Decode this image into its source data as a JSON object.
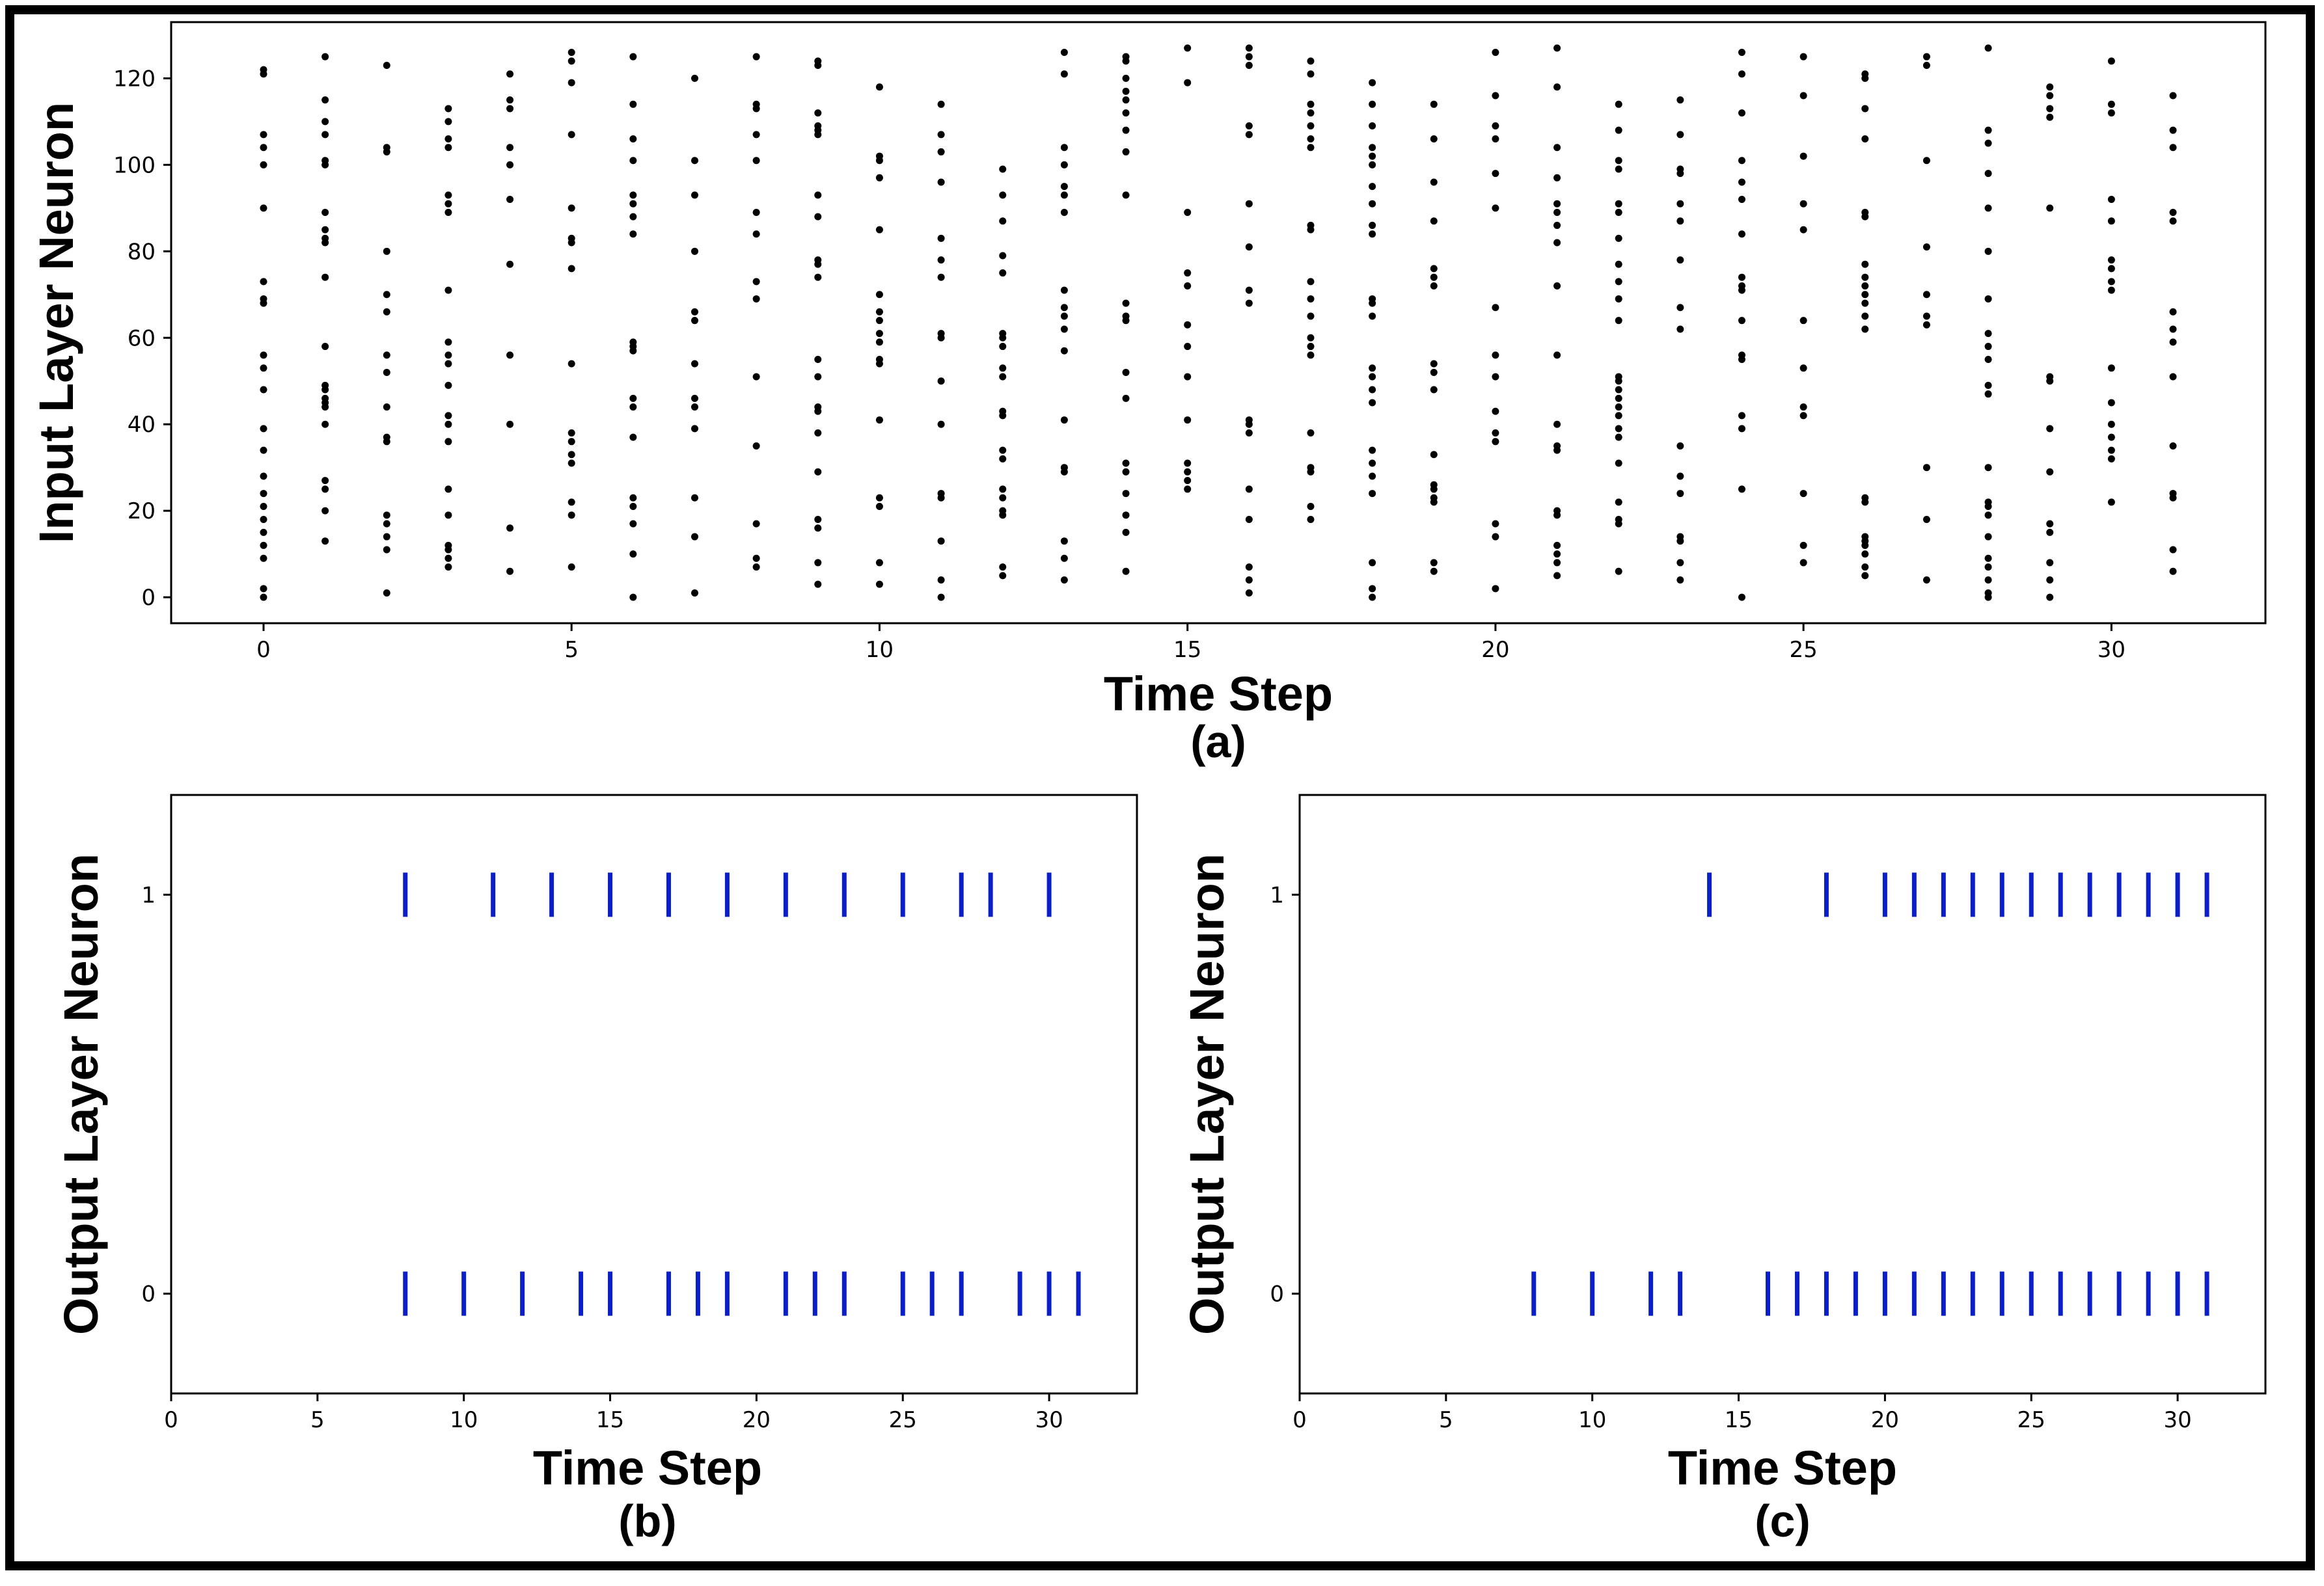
{
  "colors": {
    "input_spike": "#000000",
    "output_spike": "#0a1fc8",
    "axes": "#000000"
  },
  "chart_data": [
    {
      "type": "scatter",
      "id": "a",
      "caption": "(a)",
      "xlabel": "Time Step",
      "ylabel": "Input Layer Neuron",
      "xlim": [
        -1.5,
        32.5
      ],
      "ylim": [
        -6,
        133
      ],
      "xticks": [
        0,
        5,
        10,
        15,
        20,
        25,
        30
      ],
      "yticks": [
        0,
        20,
        40,
        60,
        80,
        100,
        120
      ],
      "grid": false,
      "spikes": [
        {
          "t": 0,
          "neurons": [
            0,
            2,
            9,
            12,
            15,
            18,
            21,
            24,
            28,
            34,
            39,
            48,
            53,
            56,
            68,
            69,
            73,
            90,
            100,
            104,
            107,
            121,
            122
          ]
        },
        {
          "t": 1,
          "neurons": [
            13,
            20,
            25,
            27,
            40,
            44,
            45,
            46,
            48,
            49,
            58,
            74,
            82,
            83,
            85,
            89,
            100,
            101,
            107,
            110,
            115,
            125
          ]
        },
        {
          "t": 2,
          "neurons": [
            1,
            11,
            14,
            17,
            19,
            36,
            37,
            44,
            52,
            56,
            66,
            70,
            80,
            103,
            104,
            123
          ]
        },
        {
          "t": 3,
          "neurons": [
            7,
            9,
            11,
            12,
            19,
            25,
            36,
            40,
            42,
            49,
            54,
            56,
            59,
            71,
            89,
            91,
            93,
            104,
            106,
            110,
            113
          ]
        },
        {
          "t": 4,
          "neurons": [
            6,
            16,
            40,
            56,
            77,
            92,
            100,
            104,
            113,
            115,
            121
          ]
        },
        {
          "t": 5,
          "neurons": [
            7,
            19,
            22,
            31,
            33,
            36,
            38,
            54,
            76,
            82,
            83,
            90,
            107,
            119,
            124,
            126
          ]
        },
        {
          "t": 6,
          "neurons": [
            0,
            10,
            17,
            21,
            23,
            37,
            44,
            46,
            57,
            58,
            59,
            84,
            88,
            91,
            93,
            101,
            106,
            114,
            125
          ]
        },
        {
          "t": 7,
          "neurons": [
            1,
            14,
            23,
            39,
            44,
            46,
            54,
            64,
            66,
            80,
            93,
            101,
            120
          ]
        },
        {
          "t": 8,
          "neurons": [
            7,
            9,
            17,
            35,
            51,
            69,
            73,
            84,
            89,
            101,
            107,
            113,
            114,
            125
          ]
        },
        {
          "t": 9,
          "neurons": [
            3,
            8,
            16,
            18,
            29,
            38,
            43,
            44,
            51,
            55,
            74,
            77,
            78,
            88,
            93,
            107,
            108,
            109,
            112,
            123,
            124
          ]
        },
        {
          "t": 10,
          "neurons": [
            3,
            8,
            21,
            23,
            41,
            54,
            55,
            59,
            61,
            64,
            66,
            70,
            85,
            97,
            101,
            102,
            118
          ]
        },
        {
          "t": 11,
          "neurons": [
            0,
            4,
            13,
            23,
            24,
            40,
            50,
            60,
            61,
            74,
            78,
            83,
            96,
            103,
            107,
            114
          ]
        },
        {
          "t": 12,
          "neurons": [
            5,
            7,
            19,
            20,
            23,
            25,
            32,
            34,
            42,
            43,
            51,
            53,
            58,
            60,
            61,
            75,
            79,
            87,
            93,
            99
          ]
        },
        {
          "t": 13,
          "neurons": [
            4,
            9,
            13,
            29,
            30,
            41,
            57,
            62,
            65,
            67,
            71,
            89,
            93,
            95,
            100,
            104,
            121,
            126
          ]
        },
        {
          "t": 14,
          "neurons": [
            6,
            15,
            19,
            24,
            29,
            31,
            46,
            52,
            64,
            65,
            68,
            93,
            103,
            108,
            112,
            115,
            117,
            120,
            124,
            125
          ]
        },
        {
          "t": 15,
          "neurons": [
            25,
            27,
            29,
            31,
            41,
            51,
            58,
            63,
            72,
            75,
            89,
            119,
            127
          ]
        },
        {
          "t": 16,
          "neurons": [
            1,
            4,
            7,
            18,
            25,
            38,
            40,
            41,
            68,
            71,
            81,
            91,
            107,
            109,
            123,
            125,
            127
          ]
        },
        {
          "t": 17,
          "neurons": [
            18,
            21,
            29,
            30,
            38,
            56,
            58,
            60,
            65,
            69,
            73,
            85,
            86,
            104,
            106,
            109,
            112,
            114,
            121,
            124
          ]
        },
        {
          "t": 18,
          "neurons": [
            0,
            2,
            8,
            24,
            28,
            31,
            34,
            45,
            48,
            51,
            53,
            65,
            68,
            69,
            84,
            86,
            91,
            95,
            100,
            102,
            104,
            109,
            114,
            119
          ]
        },
        {
          "t": 19,
          "neurons": [
            6,
            8,
            22,
            23,
            25,
            26,
            33,
            48,
            52,
            54,
            72,
            74,
            76,
            87,
            96,
            106,
            114
          ]
        },
        {
          "t": 20,
          "neurons": [
            2,
            14,
            17,
            36,
            38,
            43,
            51,
            56,
            67,
            90,
            98,
            106,
            109,
            116,
            126
          ]
        },
        {
          "t": 21,
          "neurons": [
            5,
            8,
            10,
            12,
            19,
            20,
            34,
            35,
            40,
            56,
            72,
            82,
            86,
            89,
            91,
            97,
            104,
            118,
            127
          ]
        },
        {
          "t": 22,
          "neurons": [
            6,
            17,
            18,
            22,
            31,
            37,
            39,
            42,
            44,
            46,
            48,
            50,
            51,
            64,
            69,
            73,
            77,
            83,
            89,
            91,
            99,
            101,
            108,
            114
          ]
        },
        {
          "t": 23,
          "neurons": [
            4,
            8,
            13,
            14,
            24,
            28,
            35,
            62,
            67,
            78,
            87,
            91,
            98,
            99,
            107,
            115
          ]
        },
        {
          "t": 24,
          "neurons": [
            0,
            25,
            39,
            42,
            55,
            56,
            64,
            71,
            72,
            74,
            84,
            92,
            96,
            101,
            112,
            121,
            126
          ]
        },
        {
          "t": 25,
          "neurons": [
            8,
            12,
            24,
            42,
            44,
            53,
            64,
            85,
            91,
            102,
            116,
            125
          ]
        },
        {
          "t": 26,
          "neurons": [
            5,
            7,
            10,
            12,
            13,
            14,
            22,
            23,
            62,
            65,
            68,
            70,
            72,
            74,
            77,
            88,
            89,
            106,
            113,
            120,
            121
          ]
        },
        {
          "t": 27,
          "neurons": [
            4,
            18,
            30,
            63,
            65,
            70,
            81,
            101,
            123,
            125
          ]
        },
        {
          "t": 28,
          "neurons": [
            0,
            1,
            4,
            7,
            9,
            14,
            19,
            21,
            22,
            30,
            47,
            49,
            55,
            58,
            61,
            69,
            80,
            90,
            98,
            105,
            108,
            127
          ]
        },
        {
          "t": 29,
          "neurons": [
            0,
            4,
            8,
            15,
            17,
            29,
            39,
            50,
            51,
            90,
            111,
            113,
            116,
            118
          ]
        },
        {
          "t": 30,
          "neurons": [
            22,
            32,
            34,
            37,
            40,
            45,
            53,
            71,
            73,
            76,
            78,
            87,
            92,
            112,
            114,
            124
          ]
        },
        {
          "t": 31,
          "neurons": [
            6,
            11,
            23,
            24,
            35,
            51,
            59,
            62,
            66,
            87,
            89,
            104,
            108,
            116
          ]
        }
      ]
    },
    {
      "type": "scatter",
      "id": "b",
      "caption": "(b)",
      "xlabel": "Time Step",
      "ylabel": "Output Layer Neuron",
      "xlim": [
        0,
        33
      ],
      "ylim": [
        -0.25,
        1.25
      ],
      "xticks": [
        0,
        5,
        10,
        15,
        20,
        25,
        30
      ],
      "yticks": [
        0,
        1
      ],
      "grid": false,
      "spikes": [
        {
          "neuron": 1,
          "times": [
            8,
            11,
            13,
            15,
            17,
            19,
            21,
            23,
            25,
            27,
            28,
            30
          ]
        },
        {
          "neuron": 0,
          "times": [
            8,
            10,
            12,
            14,
            15,
            17,
            18,
            19,
            21,
            22,
            23,
            25,
            26,
            27,
            29,
            30,
            31
          ]
        }
      ]
    },
    {
      "type": "scatter",
      "id": "c",
      "caption": "(c)",
      "xlabel": "Time Step",
      "ylabel": "Output Layer Neuron",
      "xlim": [
        0,
        33
      ],
      "ylim": [
        -0.25,
        1.25
      ],
      "xticks": [
        0,
        5,
        10,
        15,
        20,
        25,
        30
      ],
      "yticks": [
        0,
        1
      ],
      "grid": false,
      "spikes": [
        {
          "neuron": 1,
          "times": [
            14,
            18,
            20,
            21,
            22,
            23,
            24,
            25,
            26,
            27,
            28,
            29,
            30,
            31
          ]
        },
        {
          "neuron": 0,
          "times": [
            8,
            10,
            12,
            13,
            16,
            17,
            18,
            19,
            20,
            21,
            22,
            23,
            24,
            25,
            26,
            27,
            28,
            29,
            30,
            31
          ]
        }
      ]
    }
  ]
}
